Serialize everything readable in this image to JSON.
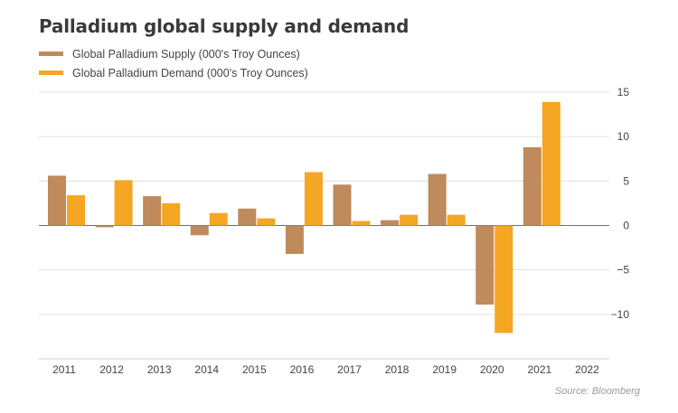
{
  "chart_data": {
    "type": "bar",
    "title": "Palladium global supply and demand",
    "categories": [
      "2011",
      "2012",
      "2013",
      "2014",
      "2015",
      "2016",
      "2017",
      "2018",
      "2019",
      "2020",
      "2021",
      "2022"
    ],
    "series": [
      {
        "name": "Global Palladium Supply (000's Troy Ounces)",
        "color": "#bf8a5c",
        "values": [
          5.6,
          -0.2,
          3.3,
          -1.1,
          1.9,
          -3.2,
          4.6,
          0.6,
          5.8,
          -8.9,
          8.8,
          null
        ]
      },
      {
        "name": "Global Palladium Demand (000's Troy Ounces)",
        "color": "#f5a623",
        "values": [
          3.4,
          5.1,
          2.5,
          1.4,
          0.8,
          6.0,
          0.5,
          1.2,
          1.2,
          -12.1,
          13.9,
          null
        ]
      }
    ],
    "yticks": [
      15,
      10,
      5,
      0,
      -5,
      -10
    ],
    "ylim": [
      -15,
      15
    ],
    "grid": true,
    "legend_position": "top-left",
    "source": "Source: Bloomberg"
  }
}
